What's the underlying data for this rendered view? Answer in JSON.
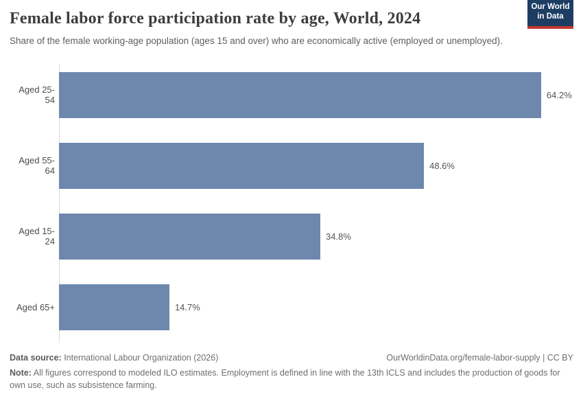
{
  "header": {
    "title": "Female labor force participation rate by age, World, 2024",
    "subtitle": "Share of the female working-age population (ages 15 and over) who are economically active (employed or unemployed).",
    "logo": {
      "line1": "Our World",
      "line2": "in Data",
      "bg_color": "#1d3d63",
      "accent_color": "#c0392b"
    }
  },
  "chart_data": {
    "type": "bar",
    "orientation": "horizontal",
    "title": "Female labor force participation rate by age, World, 2024",
    "categories": [
      "Aged 25-54",
      "Aged 55-64",
      "Aged 15-24",
      "Aged 65+"
    ],
    "values": [
      64.2,
      48.6,
      34.8,
      14.7
    ],
    "value_labels": [
      "64.2%",
      "48.6%",
      "34.8%",
      "14.7%"
    ],
    "unit": "%",
    "xlabel": "",
    "ylabel": "",
    "xlim": [
      0,
      68.5
    ],
    "bar_color": "#6d87ad",
    "axis_color": "#dcdcdc",
    "grid": false,
    "legend": false
  },
  "footer": {
    "source_label": "Data source:",
    "source_text": " International Labour Organization (2026)",
    "attribution": "OurWorldinData.org/female-labor-supply | CC BY",
    "note_label": "Note:",
    "note_text": " All figures correspond to modeled ILO estimates. Employment is defined in line with the 13th ICLS and includes the production of goods for own use, such as subsistence farming."
  }
}
